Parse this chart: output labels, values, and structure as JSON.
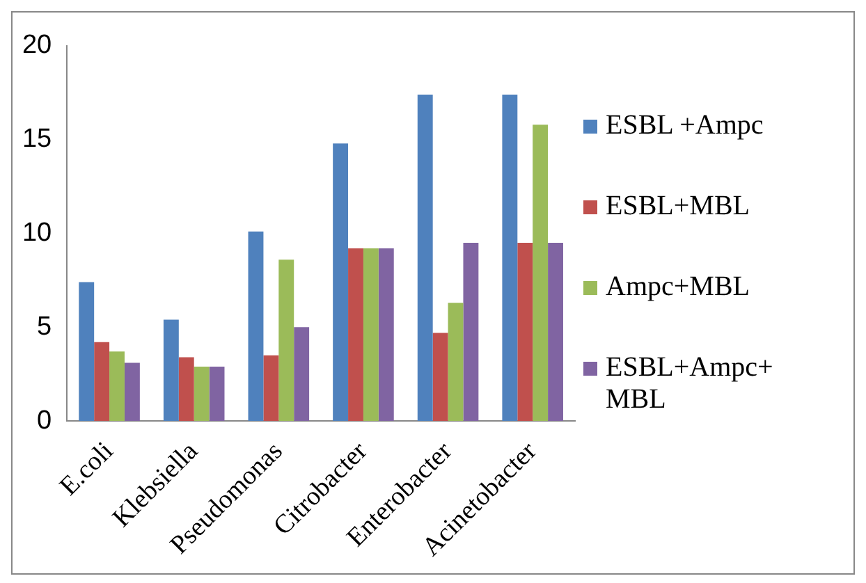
{
  "chart_data": {
    "type": "bar",
    "categories": [
      "E.coli",
      "Klebsiella",
      "Pseudomonas",
      "Citrobacter",
      "Enterobacter",
      "Acinetobacter"
    ],
    "series": [
      {
        "name": "ESBL +Ampc",
        "color": "#4f81bd",
        "values": [
          7.4,
          5.4,
          10.1,
          14.8,
          17.4,
          17.4
        ]
      },
      {
        "name": "ESBL+MBL",
        "color": "#c0504d",
        "values": [
          4.2,
          3.4,
          3.5,
          9.2,
          4.7,
          9.5
        ]
      },
      {
        "name": "Ampc+MBL",
        "color": "#9bbb59",
        "values": [
          3.7,
          2.9,
          8.6,
          9.2,
          6.3,
          15.8
        ]
      },
      {
        "name": "ESBL+Ampc+ MBL",
        "color": "#8064a2",
        "values": [
          3.1,
          2.9,
          5.0,
          9.2,
          9.5,
          9.5
        ]
      }
    ],
    "ylim": [
      0,
      20
    ],
    "yticks": [
      0,
      5,
      10,
      15,
      20
    ],
    "grid": false,
    "legend": "right"
  }
}
